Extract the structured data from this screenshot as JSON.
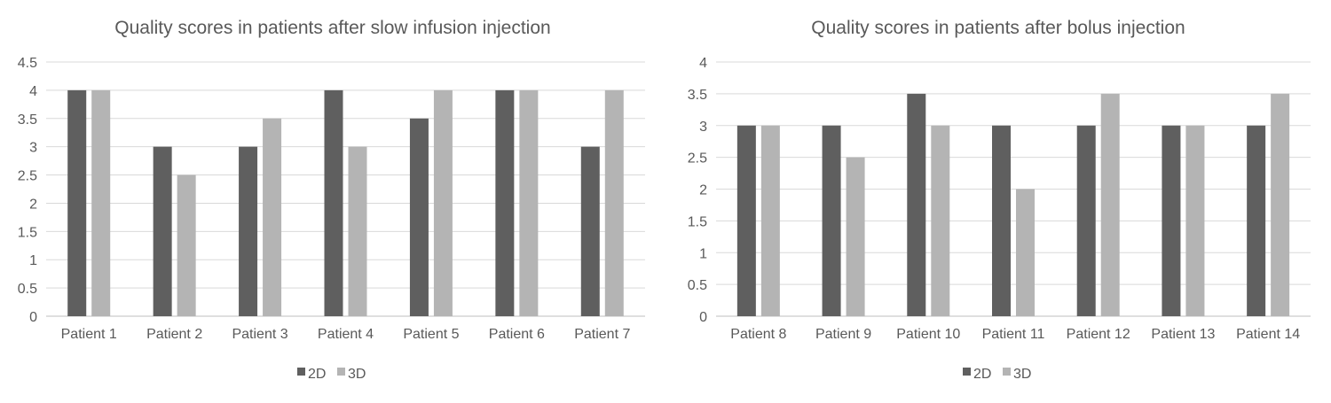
{
  "chart_data": [
    {
      "type": "bar",
      "title": "Quality scores in patients after slow infusion injection",
      "categories": [
        "Patient 1",
        "Patient 2",
        "Patient 3",
        "Patient 4",
        "Patient 5",
        "Patient 6",
        "Patient 7"
      ],
      "series": [
        {
          "name": "2D",
          "color": "#5f5f5f",
          "values": [
            4,
            3,
            3,
            4,
            3.5,
            4,
            3
          ]
        },
        {
          "name": "3D",
          "color": "#b4b4b4",
          "values": [
            4,
            2.5,
            3.5,
            3,
            4,
            4,
            4
          ]
        }
      ],
      "ylim": [
        0,
        4.5
      ],
      "yticks": [
        "0",
        "0.5",
        "1",
        "1.5",
        "2",
        "2.5",
        "3",
        "3.5",
        "4",
        "4.5"
      ],
      "grid": true,
      "legend": "bottom",
      "xlabel": "",
      "ylabel": ""
    },
    {
      "type": "bar",
      "title": "Quality scores in patients after bolus injection",
      "categories": [
        "Patient 8",
        "Patient 9",
        "Patient 10",
        "Patient 11",
        "Patient 12",
        "Patient 13",
        "Patient 14"
      ],
      "series": [
        {
          "name": "2D",
          "color": "#5f5f5f",
          "values": [
            3,
            3,
            3.5,
            3,
            3,
            3,
            3
          ]
        },
        {
          "name": "3D",
          "color": "#b4b4b4",
          "values": [
            3,
            2.5,
            3,
            2,
            3.5,
            3,
            3.5
          ]
        }
      ],
      "ylim": [
        0,
        4
      ],
      "yticks": [
        "0",
        "0.5",
        "1",
        "1.5",
        "2",
        "2.5",
        "3",
        "3.5",
        "4"
      ],
      "grid": true,
      "legend": "bottom",
      "xlabel": "",
      "ylabel": ""
    }
  ]
}
